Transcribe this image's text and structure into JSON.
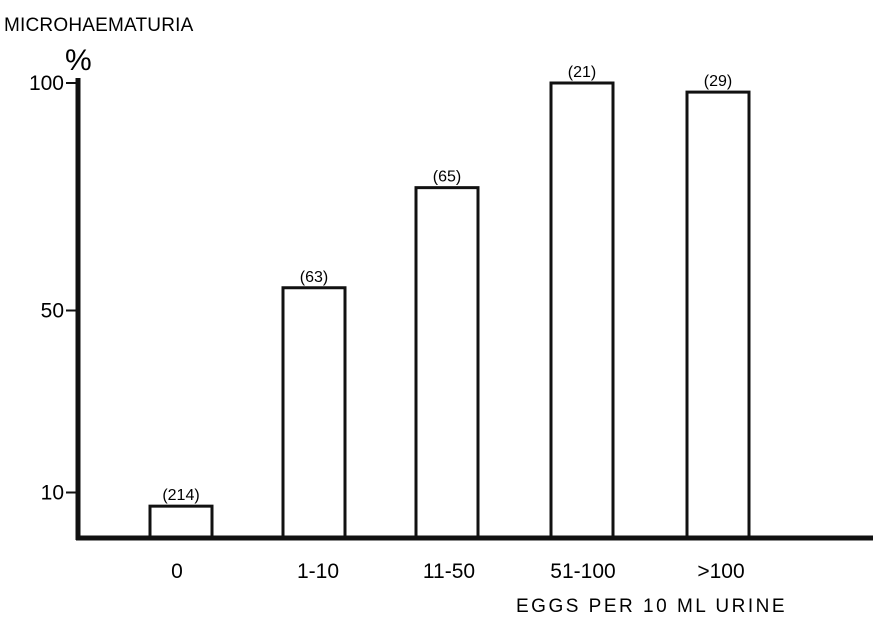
{
  "chart_data": {
    "type": "bar",
    "title": "MICROHAEMATURIA",
    "ylabel": "%",
    "xlabel": "EGGS PER 10 ML URINE",
    "categories": [
      "0",
      "1-10",
      "11-50",
      "51-100",
      ">100"
    ],
    "values": [
      7,
      55,
      77,
      100,
      98
    ],
    "counts": [
      "(214)",
      "(63)",
      "(65)",
      "(21)",
      "(29)"
    ],
    "yticks": [
      "10",
      "50",
      "100"
    ],
    "ylim": [
      0,
      100
    ],
    "grid": false,
    "legend": "none"
  },
  "colors": {
    "ink": "#111111",
    "background": "#ffffff",
    "bar_fill": "#ffffff"
  }
}
